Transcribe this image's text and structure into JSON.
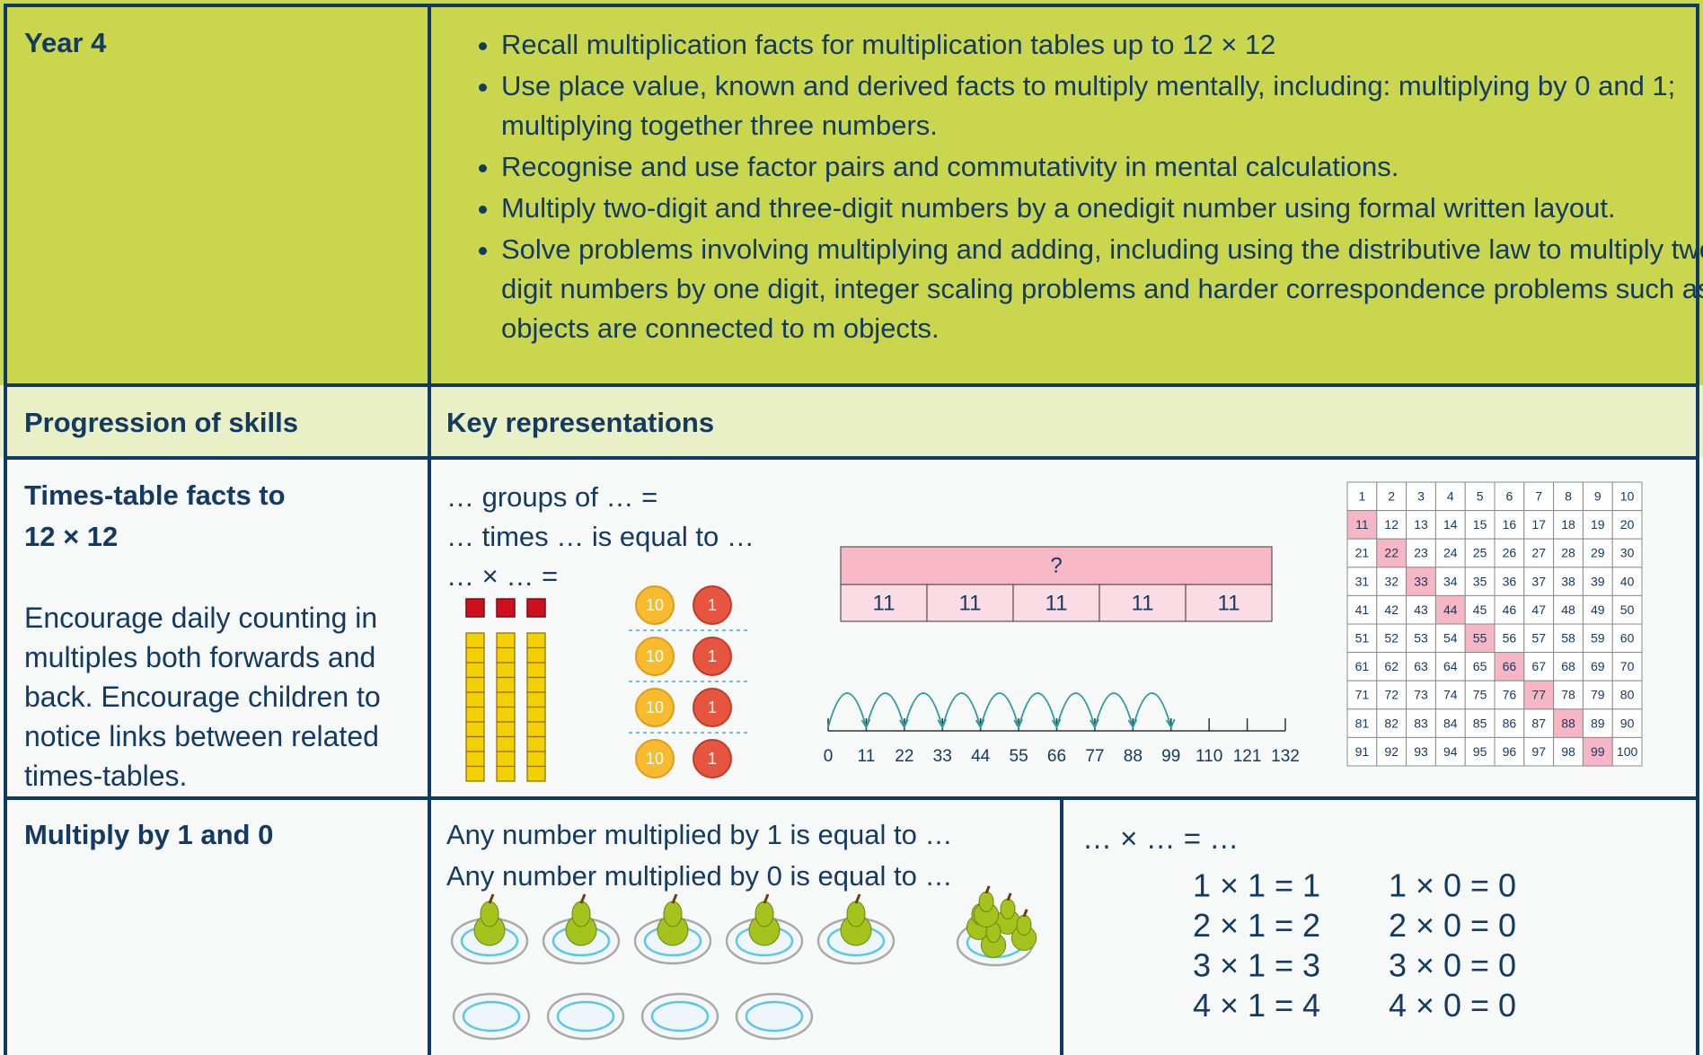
{
  "header": {
    "year": "Year 4",
    "objectives": [
      "Recall multiplication facts for multiplication tables up to 12 × 12",
      "Use place value, known and derived facts to multiply mentally, including: multiplying by 0 and 1; multiplying together three numbers.",
      "Recognise and use factor pairs and commutativity in mental calculations.",
      "Multiply two-digit and three-digit numbers by a onedigit number using formal written layout.",
      "Solve problems involving multiplying and adding, including using the distributive law to multiply two-digit numbers by one digit, integer scaling problems and harder correspondence problems such as n objects are connected to m objects."
    ]
  },
  "table_header": {
    "left": "Progression of skills",
    "right": "Key representations"
  },
  "rows": [
    {
      "skill_title": [
        "Times-table facts to",
        "12 × 12"
      ],
      "skill_note": "Encourage daily counting in multiples both forwards and back. Encourage children to notice links between related times-tables.",
      "sentence_stems": [
        "… groups of … =",
        "… times … is equal to …",
        "… × … ="
      ],
      "base_ten": {
        "tens": 3,
        "ones": 3
      },
      "counters": {
        "rows": 4,
        "tens_label": "10",
        "ones_label": "1"
      },
      "bar_model": {
        "whole": "?",
        "parts": [
          11,
          11,
          11,
          11,
          11
        ]
      },
      "number_line": {
        "ticks": [
          0,
          11,
          22,
          33,
          44,
          55,
          66,
          77,
          88,
          99,
          110,
          121,
          132
        ],
        "jumps": 9
      },
      "hundred_square": {
        "columns": 10,
        "numbers": [
          1,
          2,
          3,
          4,
          5,
          6,
          7,
          8,
          9,
          10,
          11,
          12,
          13,
          14,
          15,
          16,
          17,
          18,
          19,
          20,
          21,
          22,
          23,
          24,
          25,
          26,
          27,
          28,
          29,
          30,
          31,
          32,
          33,
          34,
          35,
          36,
          37,
          38,
          39,
          40,
          41,
          42,
          43,
          44,
          45,
          46,
          47,
          48,
          49,
          50,
          51,
          52,
          53,
          54,
          55,
          56,
          57,
          58,
          59,
          60,
          61,
          62,
          63,
          64,
          65,
          66,
          67,
          68,
          69,
          70,
          71,
          72,
          73,
          74,
          75,
          76,
          77,
          78,
          79,
          80,
          81,
          82,
          83,
          84,
          85,
          86,
          87,
          88,
          89,
          90,
          91,
          92,
          93,
          94,
          95,
          96,
          97,
          98,
          99,
          100
        ],
        "highlighted": [
          11,
          22,
          33,
          44,
          55,
          66,
          77,
          88,
          99
        ]
      }
    },
    {
      "skill_title": [
        "Multiply by 1 and 0"
      ],
      "sentence_stems": [
        "Any number multiplied by 1 is equal to …",
        "Any number multiplied by 0 is equal to …"
      ],
      "pears": {
        "plates_with_one": 5,
        "empty_plates": 4
      },
      "equation_stem": "… × … = …",
      "equations_by_1": [
        "1 × 1 = 1",
        "2 × 1 = 2",
        "3 × 1 = 3",
        "4 × 1 = 4"
      ],
      "equations_by_0": [
        "1 × 0 = 0",
        "2 × 0 = 0",
        "3 × 0 = 0",
        "4 × 0 = 0"
      ]
    }
  ]
}
